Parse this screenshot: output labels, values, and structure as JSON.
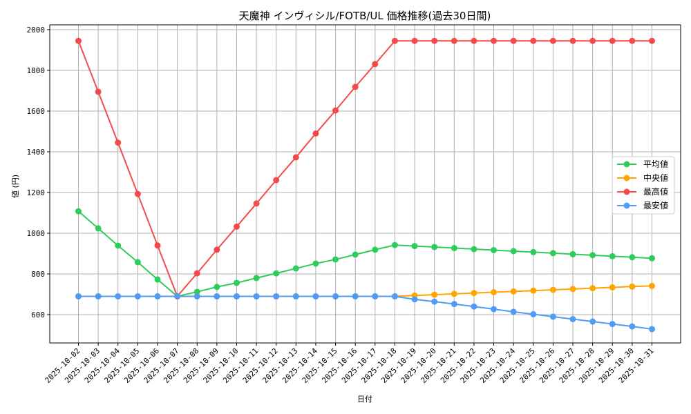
{
  "chart_data": {
    "type": "line",
    "title": "天魔神 インヴィシル/FOTB/UL 価格推移(過去30日間)",
    "xlabel": "日付",
    "ylabel": "値 (円)",
    "ylim": [
      460,
      2010
    ],
    "yticks": [
      600,
      800,
      1000,
      1200,
      1400,
      1600,
      1800,
      2000
    ],
    "grid": true,
    "legend_position": "center right",
    "x": [
      "2025-10-02",
      "2025-10-03",
      "2025-10-04",
      "2025-10-05",
      "2025-10-06",
      "2025-10-07",
      "2025-10-08",
      "2025-10-09",
      "2025-10-10",
      "2025-10-11",
      "2025-10-12",
      "2025-10-13",
      "2025-10-14",
      "2025-10-15",
      "2025-10-16",
      "2025-10-17",
      "2025-10-18",
      "2025-10-19",
      "2025-10-20",
      "2025-10-21",
      "2025-10-22",
      "2025-10-23",
      "2025-10-24",
      "2025-10-25",
      "2025-10-26",
      "2025-10-27",
      "2025-10-28",
      "2025-10-29",
      "2025-10-30",
      "2025-10-31"
    ],
    "series": [
      {
        "name": "平均値",
        "color": "#2ecc5a",
        "values": [
          1108,
          1024,
          939,
          858,
          773,
          690,
          712,
          736,
          756,
          780,
          803,
          827,
          851,
          871,
          895,
          919,
          942,
          937,
          932,
          927,
          922,
          917,
          912,
          907,
          902,
          897,
          892,
          887,
          882,
          877
        ]
      },
      {
        "name": "中央値",
        "color": "#ffa500",
        "values": [
          690,
          690,
          690,
          690,
          690,
          690,
          690,
          690,
          690,
          690,
          690,
          690,
          690,
          690,
          690,
          690,
          690,
          694,
          698,
          702,
          706,
          710,
          714,
          718,
          722,
          726,
          730,
          734,
          738,
          741
        ]
      },
      {
        "name": "最高値",
        "color": "#f54a4a",
        "values": [
          1945,
          1695,
          1445,
          1193,
          940,
          690,
          803,
          919,
          1032,
          1146,
          1261,
          1373,
          1490,
          1603,
          1719,
          1831,
          1945,
          1945,
          1945,
          1945,
          1945,
          1945,
          1945,
          1945,
          1945,
          1945,
          1945,
          1945,
          1945,
          1945
        ]
      },
      {
        "name": "最安値",
        "color": "#4f9bf5",
        "values": [
          690,
          690,
          690,
          690,
          690,
          690,
          690,
          690,
          690,
          690,
          690,
          690,
          690,
          690,
          690,
          690,
          690,
          675,
          664,
          652,
          640,
          627,
          614,
          602,
          590,
          578,
          566,
          554,
          542,
          529
        ]
      }
    ]
  }
}
